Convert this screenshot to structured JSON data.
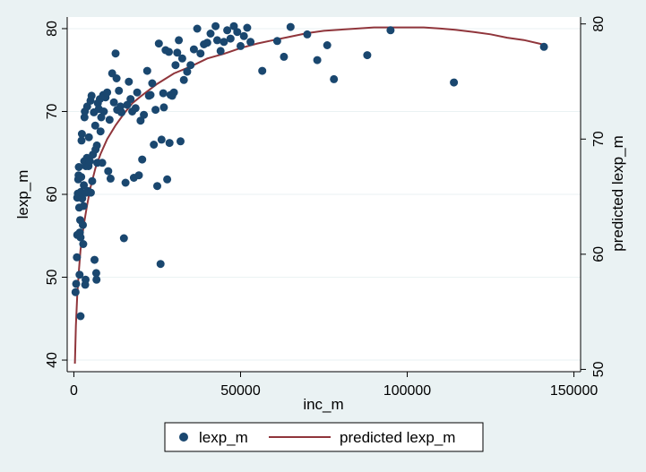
{
  "chart_data": {
    "type": "scatter",
    "xlabel": "inc_m",
    "ylabel": "lexp_m",
    "y2label": "predicted lexp_m",
    "xlim": [
      -2000,
      152000
    ],
    "ylim": [
      38.6,
      81.4
    ],
    "y2lim": [
      49.8,
      80.6
    ],
    "x_ticks": [
      0,
      50000,
      100000,
      150000
    ],
    "y_ticks": [
      40,
      50,
      60,
      70,
      80
    ],
    "y2_ticks": [
      50,
      60,
      70,
      80
    ],
    "grid": "horizontal",
    "legend": {
      "placement": "bottom",
      "entries": [
        "lexp_m",
        "predicted lexp_m"
      ]
    },
    "colors": {
      "points": "#1a476f",
      "line": "#90353b",
      "plot_bg": "#ffffff",
      "outer_bg": "#eaf2f3"
    },
    "series": [
      {
        "name": "lexp_m",
        "kind": "scatter",
        "points": [
          [
            500,
            48.2
          ],
          [
            700,
            49.2
          ],
          [
            900,
            52.4
          ],
          [
            1000,
            55.1
          ],
          [
            1000,
            59.6
          ],
          [
            1200,
            60.1
          ],
          [
            1300,
            61.8
          ],
          [
            1400,
            62.3
          ],
          [
            1500,
            63.3
          ],
          [
            1600,
            58.4
          ],
          [
            1700,
            50.3
          ],
          [
            1800,
            55.4
          ],
          [
            1900,
            56.9
          ],
          [
            2000,
            45.3
          ],
          [
            2000,
            54.8
          ],
          [
            2100,
            60.3
          ],
          [
            2200,
            62.1
          ],
          [
            2300,
            66.5
          ],
          [
            2400,
            67.3
          ],
          [
            2500,
            59.5
          ],
          [
            2600,
            60.1
          ],
          [
            2700,
            56.3
          ],
          [
            2800,
            54.0
          ],
          [
            2900,
            58.6
          ],
          [
            3000,
            61.1
          ],
          [
            3100,
            64.0
          ],
          [
            3200,
            69.3
          ],
          [
            3300,
            70.0
          ],
          [
            3400,
            49.1
          ],
          [
            3500,
            49.7
          ],
          [
            3600,
            63.4
          ],
          [
            3700,
            60.2
          ],
          [
            3900,
            64.4
          ],
          [
            4000,
            70.6
          ],
          [
            4200,
            60.4
          ],
          [
            4400,
            63.4
          ],
          [
            4500,
            66.9
          ],
          [
            4800,
            64.0
          ],
          [
            5000,
            71.3
          ],
          [
            5100,
            60.2
          ],
          [
            5300,
            71.9
          ],
          [
            5500,
            61.6
          ],
          [
            5700,
            64.8
          ],
          [
            6000,
            69.9
          ],
          [
            6200,
            52.1
          ],
          [
            6400,
            68.3
          ],
          [
            6500,
            65.4
          ],
          [
            6700,
            50.5
          ],
          [
            6800,
            49.7
          ],
          [
            6900,
            65.9
          ],
          [
            7000,
            63.8
          ],
          [
            7200,
            71.0
          ],
          [
            7500,
            70.3
          ],
          [
            7800,
            71.5
          ],
          [
            8000,
            67.6
          ],
          [
            8200,
            69.3
          ],
          [
            8500,
            63.8
          ],
          [
            8800,
            72.0
          ],
          [
            9000,
            70.0
          ],
          [
            9500,
            71.7
          ],
          [
            10000,
            72.3
          ],
          [
            10300,
            62.8
          ],
          [
            10700,
            69.0
          ],
          [
            11000,
            61.9
          ],
          [
            11500,
            74.6
          ],
          [
            12000,
            71.1
          ],
          [
            12500,
            77.0
          ],
          [
            12800,
            74.0
          ],
          [
            13000,
            70.2
          ],
          [
            13500,
            72.5
          ],
          [
            14000,
            70.6
          ],
          [
            14300,
            69.9
          ],
          [
            15000,
            54.7
          ],
          [
            15500,
            61.4
          ],
          [
            16000,
            70.8
          ],
          [
            16500,
            73.6
          ],
          [
            17000,
            71.5
          ],
          [
            17500,
            70.0
          ],
          [
            18000,
            62.0
          ],
          [
            18500,
            70.4
          ],
          [
            19000,
            72.3
          ],
          [
            19500,
            62.3
          ],
          [
            20000,
            68.9
          ],
          [
            20500,
            64.2
          ],
          [
            21000,
            69.6
          ],
          [
            22000,
            74.9
          ],
          [
            22500,
            71.9
          ],
          [
            23000,
            72.0
          ],
          [
            23500,
            73.4
          ],
          [
            24000,
            66.0
          ],
          [
            24500,
            70.2
          ],
          [
            25000,
            61.0
          ],
          [
            25500,
            78.2
          ],
          [
            26000,
            51.6
          ],
          [
            26300,
            66.6
          ],
          [
            26800,
            72.2
          ],
          [
            27000,
            70.5
          ],
          [
            27500,
            77.4
          ],
          [
            28000,
            61.8
          ],
          [
            28500,
            77.2
          ],
          [
            28700,
            66.2
          ],
          [
            29000,
            72.0
          ],
          [
            29500,
            71.9
          ],
          [
            30000,
            72.3
          ],
          [
            30500,
            75.6
          ],
          [
            31000,
            77.1
          ],
          [
            31500,
            78.6
          ],
          [
            32000,
            66.4
          ],
          [
            32500,
            76.4
          ],
          [
            33000,
            73.8
          ],
          [
            34000,
            74.8
          ],
          [
            35000,
            75.6
          ],
          [
            36000,
            77.5
          ],
          [
            37000,
            80.0
          ],
          [
            38000,
            77.0
          ],
          [
            39000,
            78.1
          ],
          [
            40000,
            78.3
          ],
          [
            41000,
            79.4
          ],
          [
            42500,
            80.3
          ],
          [
            43000,
            78.6
          ],
          [
            44000,
            77.3
          ],
          [
            45000,
            78.4
          ],
          [
            46000,
            79.8
          ],
          [
            47000,
            78.8
          ],
          [
            48000,
            80.3
          ],
          [
            49000,
            79.6
          ],
          [
            50000,
            77.9
          ],
          [
            51000,
            79.1
          ],
          [
            52000,
            80.1
          ],
          [
            53000,
            78.4
          ],
          [
            56500,
            74.9
          ],
          [
            61000,
            78.5
          ],
          [
            63000,
            76.6
          ],
          [
            65000,
            80.2
          ],
          [
            70000,
            79.3
          ],
          [
            73000,
            76.2
          ],
          [
            76000,
            78.0
          ],
          [
            78000,
            73.9
          ],
          [
            88000,
            76.8
          ],
          [
            95000,
            79.8
          ],
          [
            114000,
            73.5
          ],
          [
            141000,
            77.8
          ]
        ]
      },
      {
        "name": "predicted lexp_m",
        "kind": "line",
        "axis": "right",
        "points": [
          [
            300,
            50.5
          ],
          [
            600,
            53.8
          ],
          [
            1000,
            56.4
          ],
          [
            1500,
            58.5
          ],
          [
            2000,
            60.4
          ],
          [
            3000,
            62.6
          ],
          [
            4000,
            64.3
          ],
          [
            5000,
            65.8
          ],
          [
            6500,
            67.5
          ],
          [
            8000,
            68.7
          ],
          [
            10000,
            70.0
          ],
          [
            12500,
            71.2
          ],
          [
            15000,
            72.2
          ],
          [
            17500,
            73.1
          ],
          [
            20000,
            73.7
          ],
          [
            25000,
            74.8
          ],
          [
            30000,
            75.7
          ],
          [
            35000,
            76.3
          ],
          [
            40000,
            77.0
          ],
          [
            45000,
            77.4
          ],
          [
            50000,
            77.9
          ],
          [
            55000,
            78.3
          ],
          [
            60000,
            78.6
          ],
          [
            65000,
            78.9
          ],
          [
            70000,
            79.2
          ],
          [
            75000,
            79.4
          ],
          [
            80000,
            79.5
          ],
          [
            85000,
            79.6
          ],
          [
            90000,
            79.7
          ],
          [
            95000,
            79.7
          ],
          [
            100000,
            79.7
          ],
          [
            105000,
            79.7
          ],
          [
            110000,
            79.6
          ],
          [
            114000,
            79.5
          ],
          [
            120000,
            79.3
          ],
          [
            125000,
            79.1
          ],
          [
            130000,
            78.8
          ],
          [
            135000,
            78.6
          ],
          [
            141000,
            78.2
          ]
        ]
      }
    ]
  }
}
